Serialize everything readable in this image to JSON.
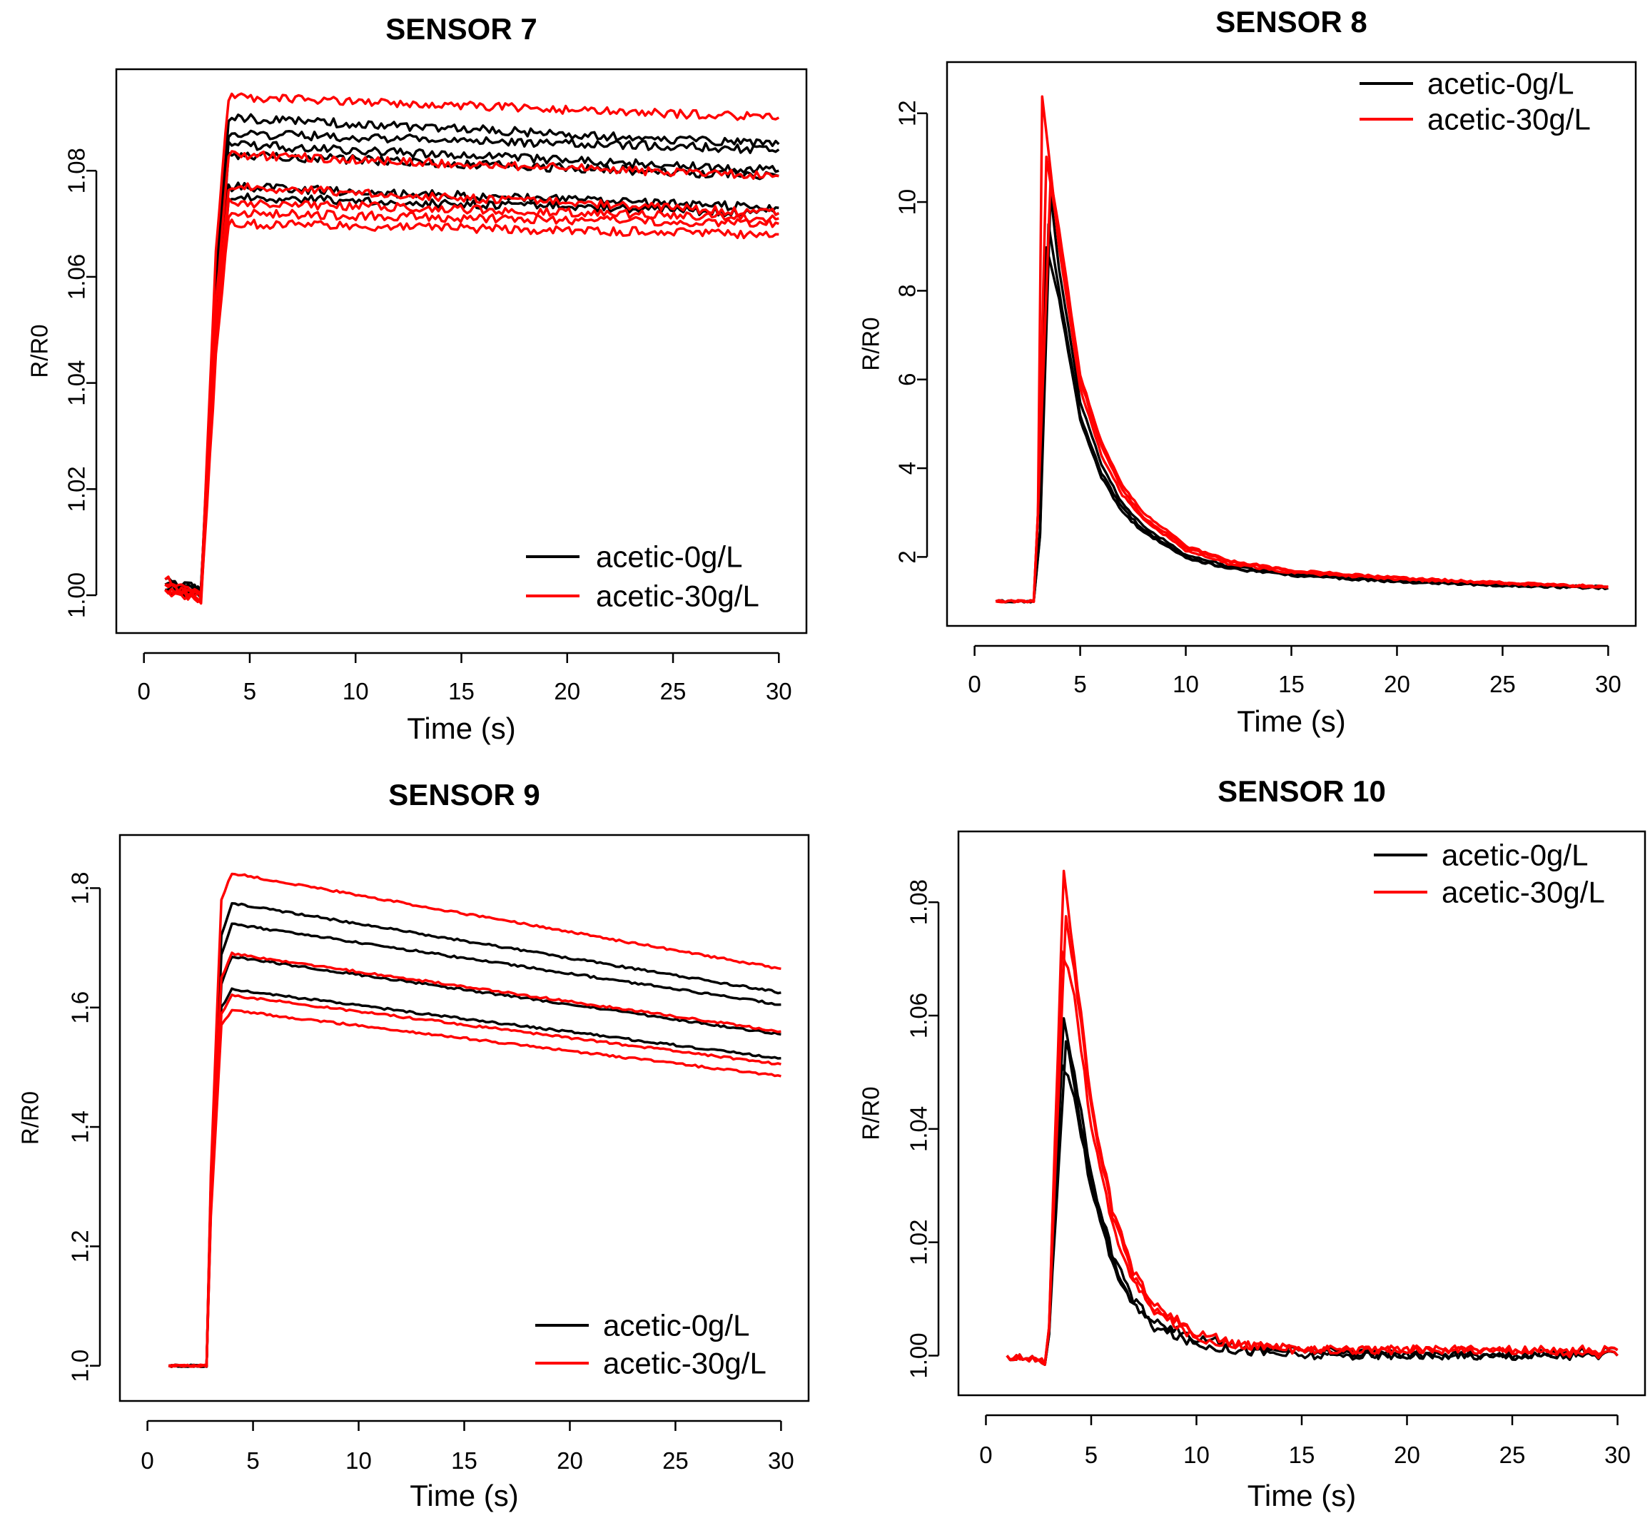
{
  "chart_data": [
    {
      "type": "line",
      "title": "SENSOR 7",
      "xlabel": "Time (s)",
      "ylabel": "R/R0",
      "xlim": [
        0,
        30
      ],
      "ylim": [
        0.995,
        1.097
      ],
      "xticks": [
        0,
        5,
        10,
        15,
        20,
        25,
        30
      ],
      "yticks": [
        1.0,
        1.02,
        1.04,
        1.06,
        1.08
      ],
      "ytick_labels": [
        "1.00",
        "1.02",
        "1.04",
        "1.06",
        "1.08"
      ],
      "legend": {
        "position": "bottom-right",
        "entries": [
          {
            "label": "acetic-0g/L",
            "color": "#000000"
          },
          {
            "label": "acetic-30g/L",
            "color": "#ff0000"
          }
        ]
      },
      "series": [
        {
          "group": 0,
          "color": "#000000",
          "x": [
            1,
            2.7,
            3.4,
            4,
            30
          ],
          "y": [
            1.003,
            1.001,
            1.06,
            1.09,
            1.085
          ]
        },
        {
          "group": 0,
          "color": "#000000",
          "x": [
            1,
            2.7,
            3.4,
            4,
            30
          ],
          "y": [
            1.002,
            1.001,
            1.058,
            1.087,
            1.084
          ]
        },
        {
          "group": 0,
          "color": "#000000",
          "x": [
            1,
            2.7,
            3.4,
            4,
            30
          ],
          "y": [
            1.002,
            1.0,
            1.056,
            1.085,
            1.08
          ]
        },
        {
          "group": 0,
          "color": "#000000",
          "x": [
            1,
            2.7,
            3.4,
            4,
            30
          ],
          "y": [
            1.001,
            1.001,
            1.052,
            1.083,
            1.079
          ]
        },
        {
          "group": 0,
          "color": "#000000",
          "x": [
            1,
            2.7,
            3.4,
            4,
            30
          ],
          "y": [
            1.002,
            1.001,
            1.05,
            1.077,
            1.073
          ]
        },
        {
          "group": 0,
          "color": "#000000",
          "x": [
            1,
            2.7,
            3.4,
            4,
            30
          ],
          "y": [
            1.001,
            1.0,
            1.048,
            1.075,
            1.072
          ]
        },
        {
          "group": 1,
          "color": "#ff0000",
          "x": [
            1,
            2.7,
            3.4,
            4,
            30
          ],
          "y": [
            1.003,
            1.0,
            1.065,
            1.094,
            1.09
          ]
        },
        {
          "group": 1,
          "color": "#ff0000",
          "x": [
            1,
            2.7,
            3.4,
            4,
            30
          ],
          "y": [
            1.002,
            1.0,
            1.055,
            1.083,
            1.079
          ]
        },
        {
          "group": 1,
          "color": "#ff0000",
          "x": [
            1,
            2.7,
            3.4,
            4,
            30
          ],
          "y": [
            1.001,
            0.999,
            1.05,
            1.077,
            1.072
          ]
        },
        {
          "group": 1,
          "color": "#ff0000",
          "x": [
            1,
            2.7,
            3.4,
            4,
            30
          ],
          "y": [
            1.002,
            1.0,
            1.048,
            1.074,
            1.071
          ]
        },
        {
          "group": 1,
          "color": "#ff0000",
          "x": [
            1,
            2.7,
            3.4,
            4,
            30
          ],
          "y": [
            1.001,
            1.0,
            1.046,
            1.072,
            1.07
          ]
        },
        {
          "group": 1,
          "color": "#ff0000",
          "x": [
            1,
            2.7,
            3.4,
            4,
            30
          ],
          "y": [
            1.001,
            0.999,
            1.045,
            1.07,
            1.068
          ]
        }
      ]
    },
    {
      "type": "line",
      "title": "SENSOR 8",
      "xlabel": "Time (s)",
      "ylabel": "R/R0",
      "xlim": [
        0,
        30
      ],
      "ylim": [
        0.7,
        12.9
      ],
      "xticks": [
        0,
        5,
        10,
        15,
        20,
        25,
        30
      ],
      "yticks": [
        2,
        4,
        6,
        8,
        10,
        12
      ],
      "ytick_labels": [
        "2",
        "4",
        "6",
        "8",
        "10",
        "12"
      ],
      "legend": {
        "position": "top-right",
        "entries": [
          {
            "label": "acetic-0g/L",
            "color": "#000000"
          },
          {
            "label": "acetic-30g/L",
            "color": "#ff0000"
          }
        ]
      },
      "series": [
        {
          "group": 0,
          "color": "#000000",
          "x": [
            1,
            2.8,
            3.1,
            3.5,
            4,
            5,
            6,
            7,
            8,
            10,
            12,
            15,
            20,
            25,
            30
          ],
          "y": [
            1,
            1,
            2.5,
            9.5,
            8.0,
            5.2,
            3.9,
            3.1,
            2.6,
            2.0,
            1.75,
            1.6,
            1.45,
            1.35,
            1.3
          ]
        },
        {
          "group": 0,
          "color": "#000000",
          "x": [
            1,
            2.8,
            3.1,
            3.6,
            4,
            5,
            6,
            7,
            8,
            10,
            12,
            15,
            20,
            25,
            30
          ],
          "y": [
            1,
            1,
            2.5,
            10.2,
            8.5,
            5.5,
            4.1,
            3.2,
            2.7,
            2.05,
            1.8,
            1.62,
            1.47,
            1.37,
            1.32
          ]
        },
        {
          "group": 0,
          "color": "#000000",
          "x": [
            1,
            2.8,
            3.1,
            3.4,
            4,
            5,
            6,
            7,
            8,
            10,
            12,
            15,
            20,
            25,
            30
          ],
          "y": [
            1,
            1,
            2.6,
            9.0,
            7.8,
            5.1,
            3.8,
            3.0,
            2.55,
            1.98,
            1.74,
            1.58,
            1.44,
            1.35,
            1.3
          ]
        },
        {
          "group": 1,
          "color": "#ff0000",
          "x": [
            1,
            2.8,
            3.0,
            3.2,
            4,
            5,
            6,
            7,
            8,
            10,
            12,
            15,
            20,
            25,
            30
          ],
          "y": [
            1,
            1,
            3.0,
            12.4,
            9.0,
            5.8,
            4.3,
            3.4,
            2.85,
            2.15,
            1.85,
            1.65,
            1.5,
            1.4,
            1.32
          ]
        },
        {
          "group": 1,
          "color": "#ff0000",
          "x": [
            1,
            2.8,
            3.0,
            3.4,
            4,
            5,
            6,
            7,
            8,
            10,
            12,
            15,
            20,
            25,
            30
          ],
          "y": [
            1,
            1,
            3.0,
            11.0,
            9.2,
            6.0,
            4.5,
            3.5,
            2.9,
            2.2,
            1.9,
            1.68,
            1.52,
            1.41,
            1.33
          ]
        },
        {
          "group": 1,
          "color": "#ff0000",
          "x": [
            1,
            2.8,
            3.0,
            3.6,
            4,
            5,
            6,
            7,
            8,
            10,
            12,
            15,
            20,
            25,
            30
          ],
          "y": [
            1,
            1,
            3.0,
            10.5,
            9.4,
            6.1,
            4.6,
            3.6,
            3.0,
            2.25,
            1.92,
            1.7,
            1.53,
            1.42,
            1.33
          ]
        }
      ]
    },
    {
      "type": "line",
      "title": "SENSOR 9",
      "xlabel": "Time (s)",
      "ylabel": "R/R0",
      "xlim": [
        0,
        30
      ],
      "ylim": [
        0.96,
        1.87
      ],
      "xticks": [
        0,
        5,
        10,
        15,
        20,
        25,
        30
      ],
      "yticks": [
        1.0,
        1.2,
        1.4,
        1.6,
        1.8
      ],
      "ytick_labels": [
        "1.0",
        "1.2",
        "1.4",
        "1.6",
        "1.8"
      ],
      "legend": {
        "position": "bottom-right",
        "entries": [
          {
            "label": "acetic-0g/L",
            "color": "#000000"
          },
          {
            "label": "acetic-30g/L",
            "color": "#ff0000"
          }
        ]
      },
      "series": [
        {
          "group": 0,
          "color": "#000000",
          "x": [
            1,
            2.8,
            3.0,
            3.5,
            4,
            30
          ],
          "y": [
            1.0,
            1.0,
            1.3,
            1.72,
            1.775,
            1.625
          ]
        },
        {
          "group": 0,
          "color": "#000000",
          "x": [
            1,
            2.8,
            3.0,
            3.5,
            4,
            30
          ],
          "y": [
            1.0,
            1.0,
            1.3,
            1.69,
            1.74,
            1.605
          ]
        },
        {
          "group": 0,
          "color": "#000000",
          "x": [
            1,
            2.8,
            3.0,
            3.5,
            4,
            30
          ],
          "y": [
            1.0,
            1.0,
            1.28,
            1.64,
            1.685,
            1.555
          ]
        },
        {
          "group": 0,
          "color": "#000000",
          "x": [
            1,
            2.8,
            3.0,
            3.5,
            4,
            30
          ],
          "y": [
            1.0,
            1.0,
            1.26,
            1.6,
            1.63,
            1.515
          ]
        },
        {
          "group": 1,
          "color": "#ff0000",
          "x": [
            1,
            2.8,
            3.0,
            3.5,
            4,
            30
          ],
          "y": [
            1.0,
            1.0,
            1.32,
            1.78,
            1.825,
            1.665
          ]
        },
        {
          "group": 1,
          "color": "#ff0000",
          "x": [
            1,
            2.8,
            3.0,
            3.5,
            4,
            30
          ],
          "y": [
            1.0,
            1.0,
            1.29,
            1.65,
            1.69,
            1.56
          ]
        },
        {
          "group": 1,
          "color": "#ff0000",
          "x": [
            1,
            2.8,
            3.0,
            3.5,
            4,
            30
          ],
          "y": [
            1.0,
            1.0,
            1.26,
            1.59,
            1.62,
            1.505
          ]
        },
        {
          "group": 1,
          "color": "#ff0000",
          "x": [
            1,
            2.8,
            3.0,
            3.5,
            4,
            30
          ],
          "y": [
            1.0,
            1.0,
            1.25,
            1.57,
            1.595,
            1.485
          ]
        }
      ]
    },
    {
      "type": "line",
      "title": "SENSOR 10",
      "xlabel": "Time (s)",
      "ylabel": "R/R0",
      "xlim": [
        0,
        30
      ],
      "ylim": [
        0.995,
        1.0905
      ],
      "xticks": [
        0,
        5,
        10,
        15,
        20,
        25,
        30
      ],
      "yticks": [
        1.0,
        1.02,
        1.04,
        1.06,
        1.08
      ],
      "ytick_labels": [
        "1.00",
        "1.02",
        "1.04",
        "1.06",
        "1.08"
      ],
      "legend": {
        "position": "top-right",
        "entries": [
          {
            "label": "acetic-0g/L",
            "color": "#000000"
          },
          {
            "label": "acetic-30g/L",
            "color": "#ff0000"
          }
        ]
      },
      "series": [
        {
          "group": 0,
          "color": "#000000",
          "x": [
            1,
            2.8,
            3.0,
            3.7,
            4.2,
            5,
            6,
            7,
            8,
            10,
            12,
            15,
            20,
            25,
            30
          ],
          "y": [
            1.0,
            0.999,
            1.004,
            1.06,
            1.05,
            1.032,
            1.018,
            1.01,
            1.006,
            1.003,
            1.002,
            1.001,
            1.0,
            1.0,
            1.001
          ]
        },
        {
          "group": 0,
          "color": "#000000",
          "x": [
            1,
            2.8,
            3.0,
            3.8,
            4.2,
            5,
            6,
            7,
            8,
            10,
            12,
            15,
            20,
            25,
            30
          ],
          "y": [
            1.0,
            0.999,
            1.004,
            1.056,
            1.048,
            1.03,
            1.017,
            1.009,
            1.005,
            1.002,
            1.001,
            1.001,
            1.0,
            1.0,
            1.0
          ]
        },
        {
          "group": 0,
          "color": "#000000",
          "x": [
            1,
            2.8,
            3.0,
            3.6,
            4.2,
            5,
            6,
            7,
            8,
            10,
            12,
            15,
            20,
            25,
            30
          ],
          "y": [
            1.0,
            0.999,
            1.004,
            1.052,
            1.046,
            1.029,
            1.016,
            1.009,
            1.005,
            1.002,
            1.001,
            1.0,
            1.0,
            1.0,
            1.0
          ]
        },
        {
          "group": 1,
          "color": "#ff0000",
          "x": [
            1,
            2.8,
            3.0,
            3.7,
            4.2,
            5,
            6,
            7,
            8,
            10,
            12,
            15,
            20,
            25,
            30
          ],
          "y": [
            1.0,
            0.999,
            1.005,
            1.086,
            1.07,
            1.045,
            1.026,
            1.015,
            1.009,
            1.004,
            1.002,
            1.001,
            1.001,
            1.001,
            1.001
          ]
        },
        {
          "group": 1,
          "color": "#ff0000",
          "x": [
            1,
            2.8,
            3.0,
            3.8,
            4.2,
            5,
            6,
            7,
            8,
            10,
            12,
            15,
            20,
            25,
            30
          ],
          "y": [
            1.0,
            0.999,
            1.005,
            1.078,
            1.068,
            1.044,
            1.025,
            1.014,
            1.008,
            1.004,
            1.002,
            1.001,
            1.001,
            1.001,
            1.001
          ]
        },
        {
          "group": 1,
          "color": "#ff0000",
          "x": [
            1,
            2.8,
            3.0,
            3.6,
            4.2,
            5,
            6,
            7,
            8,
            10,
            12,
            15,
            20,
            25,
            30
          ],
          "y": [
            1.0,
            0.999,
            1.005,
            1.072,
            1.064,
            1.04,
            1.023,
            1.013,
            1.008,
            1.003,
            1.002,
            1.001,
            1.001,
            1.001,
            1.0
          ]
        }
      ]
    }
  ]
}
